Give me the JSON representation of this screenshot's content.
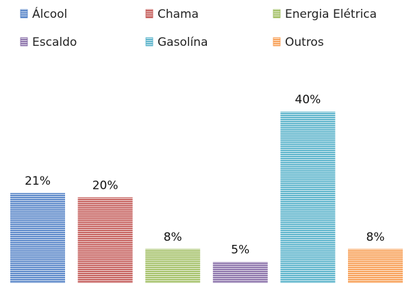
{
  "chart_data": {
    "type": "bar",
    "categories": [
      "Álcool",
      "Chama",
      "Energia Elétrica",
      "Escaldo",
      "Gasolína",
      "Outros"
    ],
    "values": [
      21,
      20,
      8,
      5,
      40,
      8
    ],
    "data_labels": [
      "21%",
      "20%",
      "8%",
      "5%",
      "40%",
      "8%"
    ],
    "colors": [
      "#4a7bc4",
      "#c0504d",
      "#9bbb59",
      "#8064a2",
      "#4bacc6",
      "#f79646"
    ],
    "fill_pattern": "horizontal-stripes",
    "ylim": [
      0,
      40
    ],
    "grid": false,
    "legend_position": "top",
    "legend": [
      "Álcool",
      "Chama",
      "Energia Elétrica",
      "Escaldo",
      "Gasolína",
      "Outros"
    ]
  }
}
